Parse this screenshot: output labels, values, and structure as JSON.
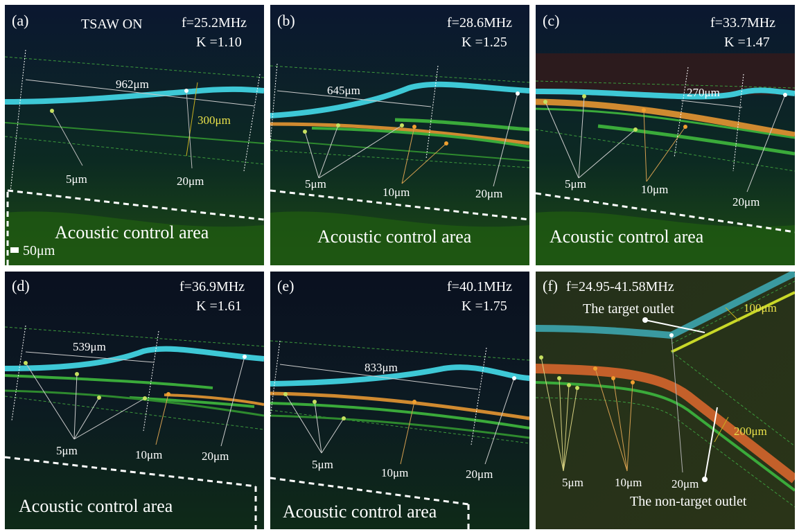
{
  "panels": [
    {
      "id": "a",
      "label": "(a)",
      "header": "TSAW ON",
      "freq": "f=25.2MHz",
      "kappa": "K =1.10",
      "dist": "962μm",
      "width_label": "300μm",
      "p1": "5μm",
      "p3": "20μm",
      "area": "Acoustic control area",
      "scale": "50μm"
    },
    {
      "id": "b",
      "label": "(b)",
      "freq": "f=28.6MHz",
      "kappa": "K =1.25",
      "dist": "645μm",
      "p1": "5μm",
      "p2": "10μm",
      "p3": "20μm",
      "area": "Acoustic control area"
    },
    {
      "id": "c",
      "label": "(c)",
      "freq": "f=33.7MHz",
      "kappa": "K =1.47",
      "dist": "270μm",
      "p1": "5μm",
      "p2": "10μm",
      "p3": "20μm",
      "area": "Acoustic control area"
    },
    {
      "id": "d",
      "label": "(d)",
      "freq": "f=36.9MHz",
      "kappa": "K =1.61",
      "dist": "539μm",
      "p1": "5μm",
      "p2": "10μm",
      "p3": "20μm",
      "area": "Acoustic control area"
    },
    {
      "id": "e",
      "label": "(e)",
      "freq": "f=40.1MHz",
      "kappa": "K =1.75",
      "dist": "833μm",
      "p1": "5μm",
      "p2": "10μm",
      "p3": "20μm",
      "area": "Acoustic control area"
    },
    {
      "id": "f",
      "label": "(f)",
      "freq": "f=24.95-41.58MHz",
      "target": "The target outlet",
      "nontarget": "The non-target outlet",
      "w1": "100μm",
      "w2": "200μm",
      "p1": "5μm",
      "p2": "10μm",
      "p3": "20μm"
    }
  ]
}
